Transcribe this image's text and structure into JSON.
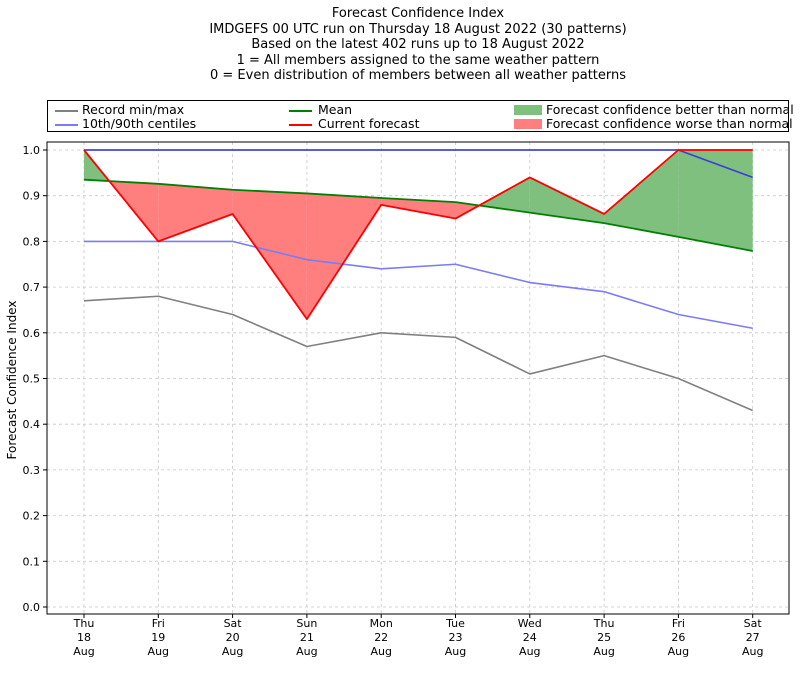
{
  "titles": [
    "Forecast Confidence Index",
    "IMDGEFS 00 UTC run on Thursday 18 August 2022 (30 patterns)",
    "Based on the latest 402 runs up to 18 August 2022",
    "1 = All members assigned to the same weather pattern",
    "0 = Even distribution of members between all weather patterns"
  ],
  "legend": {
    "record": "Record min/max",
    "centiles": "10th/90th centiles",
    "mean": "Mean",
    "current": "Current forecast",
    "better": "Forecast confidence better than normal",
    "worse": "Forecast confidence worse than normal"
  },
  "colors": {
    "record": "#808080",
    "centiles": "#7b7bf5",
    "mean": "#008000",
    "current": "#ff0000",
    "max_line": "#3c3cdc",
    "better_fill": "#7fc07f",
    "worse_fill": "#ff7f7f",
    "grid": "#c8c8c8"
  },
  "chart_data": {
    "type": "line",
    "title": "Forecast Confidence Index",
    "xlabel": "",
    "ylabel": "Forecast Confidence Index",
    "ylim": [
      0,
      1.0
    ],
    "yticks": [
      "0.0",
      "0.1",
      "0.2",
      "0.3",
      "0.4",
      "0.5",
      "0.6",
      "0.7",
      "0.8",
      "0.9",
      "1.0"
    ],
    "grid": true,
    "legend_position": "top",
    "categories": [
      [
        "Thu",
        "18",
        "Aug"
      ],
      [
        "Fri",
        "19",
        "Aug"
      ],
      [
        "Sat",
        "20",
        "Aug"
      ],
      [
        "Sun",
        "21",
        "Aug"
      ],
      [
        "Mon",
        "22",
        "Aug"
      ],
      [
        "Tue",
        "23",
        "Aug"
      ],
      [
        "Wed",
        "24",
        "Aug"
      ],
      [
        "Thu",
        "25",
        "Aug"
      ],
      [
        "Fri",
        "26",
        "Aug"
      ],
      [
        "Sat",
        "27",
        "Aug"
      ]
    ],
    "series": [
      {
        "name": "Record min",
        "values": [
          0.67,
          0.68,
          0.64,
          0.57,
          0.6,
          0.59,
          0.51,
          0.55,
          0.5,
          0.43
        ]
      },
      {
        "name": "Record max",
        "values": [
          1.0,
          1.0,
          1.0,
          1.0,
          1.0,
          1.0,
          1.0,
          1.0,
          1.0,
          1.0
        ]
      },
      {
        "name": "10th centile",
        "values": [
          0.8,
          0.8,
          0.8,
          0.76,
          0.74,
          0.75,
          0.71,
          0.69,
          0.64,
          0.61
        ]
      },
      {
        "name": "90th centile",
        "values": [
          1.0,
          1.0,
          1.0,
          1.0,
          1.0,
          1.0,
          1.0,
          1.0,
          1.0,
          0.94
        ]
      },
      {
        "name": "Mean",
        "values": [
          0.935,
          0.926,
          0.913,
          0.905,
          0.895,
          0.886,
          0.863,
          0.84,
          0.81,
          0.779
        ]
      },
      {
        "name": "Current forecast",
        "values": [
          1.0,
          0.8,
          0.86,
          0.63,
          0.88,
          0.85,
          0.94,
          0.86,
          1.0,
          1.0
        ]
      }
    ]
  }
}
